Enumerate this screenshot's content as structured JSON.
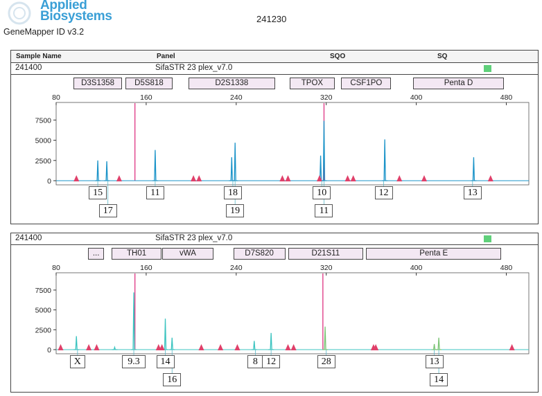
{
  "header": {
    "brand_line1": "Applied",
    "brand_line2": "Biosystems",
    "software": "GeneMapper ID v3.2",
    "run_id": "241230"
  },
  "table_header": {
    "sample_name": "Sample Name",
    "panel": "Panel",
    "sqo": "SQO",
    "sq": "SQ"
  },
  "status_color": "#5fd07a",
  "chart_data": [
    {
      "type": "line",
      "sample": "241400",
      "panel": "SifaSTR 23 plex_v7.0",
      "xlim": [
        80,
        500
      ],
      "ylim": [
        0,
        9500
      ],
      "x_ticks": [
        80,
        160,
        240,
        320,
        400,
        480
      ],
      "y_ticks": [
        0,
        2500,
        5000,
        7500
      ],
      "color": "#1a93c8",
      "loci": [
        {
          "name": "D3S1358",
          "start": 96,
          "end": 138
        },
        {
          "name": "D5S818",
          "start": 142,
          "end": 183
        },
        {
          "name": "D2S1338",
          "start": 198,
          "end": 274
        },
        {
          "name": "TPOX",
          "start": 288,
          "end": 327
        },
        {
          "name": "CSF1PO",
          "start": 334,
          "end": 377
        },
        {
          "name": "Penta D",
          "start": 398,
          "end": 477
        }
      ],
      "peaks": [
        {
          "x": 117,
          "y": 2500
        },
        {
          "x": 125,
          "y": 2400
        },
        {
          "x": 168,
          "y": 3800
        },
        {
          "x": 236,
          "y": 2900
        },
        {
          "x": 239,
          "y": 4700
        },
        {
          "x": 315,
          "y": 3100
        },
        {
          "x": 318,
          "y": 7400
        },
        {
          "x": 372,
          "y": 5100
        },
        {
          "x": 451,
          "y": 2900
        }
      ],
      "markers": [
        98,
        136,
        202,
        207,
        281,
        286,
        314,
        339,
        344,
        385,
        407,
        466
      ],
      "pink_line_x": 150,
      "pink_line2_x": 318,
      "alleles_row1": [
        {
          "label": "15",
          "x": 117
        },
        {
          "label": "11",
          "x": 168
        },
        {
          "label": "18",
          "x": 237
        },
        {
          "label": "10",
          "x": 316
        },
        {
          "label": "12",
          "x": 371
        },
        {
          "label": "13",
          "x": 450
        }
      ],
      "alleles_row2": [
        {
          "label": "17",
          "x": 126
        },
        {
          "label": "19",
          "x": 239
        },
        {
          "label": "11",
          "x": 318
        }
      ]
    },
    {
      "type": "line",
      "sample": "241400",
      "panel": "SifaSTR 23 plex_v7.0",
      "xlim": [
        80,
        500
      ],
      "ylim": [
        0,
        9500
      ],
      "x_ticks": [
        80,
        160,
        240,
        320,
        400,
        480
      ],
      "y_ticks": [
        0,
        2500,
        5000,
        7500
      ],
      "color": "#3cc4c0",
      "color2": "#7cc576",
      "loci": [
        {
          "name": "...",
          "start": 109,
          "end": 122
        },
        {
          "name": "TH01",
          "start": 130,
          "end": 173
        },
        {
          "name": "vWA",
          "start": 175,
          "end": 219
        },
        {
          "name": "D7S820",
          "start": 238,
          "end": 283
        },
        {
          "name": "D21S11",
          "start": 287,
          "end": 352
        },
        {
          "name": "Penta E",
          "start": 356,
          "end": 475
        }
      ],
      "peaks": [
        {
          "x": 98,
          "y": 1700
        },
        {
          "x": 132,
          "y": 300
        },
        {
          "x": 149,
          "y": 7200
        },
        {
          "x": 177,
          "y": 3900
        },
        {
          "x": 183,
          "y": 1500
        },
        {
          "x": 256,
          "y": 1100
        },
        {
          "x": 271,
          "y": 2100
        },
        {
          "x": 319,
          "y": 2900,
          "alt": true
        },
        {
          "x": 416,
          "y": 700,
          "alt": true
        },
        {
          "x": 420,
          "y": 1500,
          "alt": true
        }
      ],
      "markers": [
        84,
        109,
        116,
        171,
        174,
        209,
        226,
        241,
        286,
        291,
        362,
        364,
        485
      ],
      "pink_line_x": 150,
      "pink_line2_x": 317,
      "alleles_row1": [
        {
          "label": "X",
          "x": 99
        },
        {
          "label": "9.3",
          "x": 149
        },
        {
          "label": "14",
          "x": 177
        },
        {
          "label": "8",
          "x": 257
        },
        {
          "label": "12",
          "x": 271
        },
        {
          "label": "28",
          "x": 320
        },
        {
          "label": "13",
          "x": 416
        }
      ],
      "alleles_row2": [
        {
          "label": "16",
          "x": 183
        },
        {
          "label": "14",
          "x": 420
        }
      ]
    }
  ]
}
